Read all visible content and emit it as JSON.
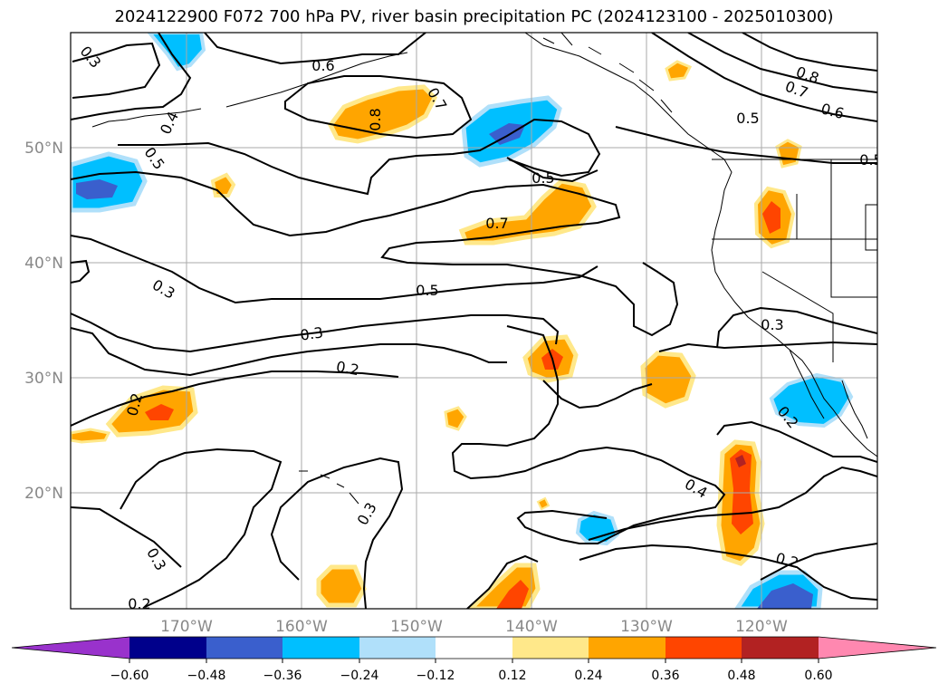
{
  "title": "2024122900 F072 700 hPa PV, river basin precipitation PC (2024123100 - 2025010300)",
  "map": {
    "lat_labels": [
      "50°N",
      "40°N",
      "30°N",
      "20°N"
    ],
    "lon_labels": [
      "170°W",
      "160°W",
      "150°W",
      "140°W",
      "130°W",
      "120°W"
    ],
    "grid": true
  },
  "contour_labels": [
    "0.3",
    "0.6",
    "0.7",
    "0.8",
    "0.8",
    "0.7",
    "0.6",
    "0.5",
    "0.4",
    "0.5",
    "0.5",
    "0.7",
    "0.3",
    "0.5",
    "0.3",
    "0.3",
    "0.2",
    "0.2",
    "0.2",
    "0.4",
    "0.3",
    "0.3",
    "0.2",
    "0.2",
    "0.5"
  ],
  "colorbar": {
    "ticks": [
      "−0.60",
      "−0.48",
      "−0.36",
      "−0.24",
      "−0.12",
      "0.12",
      "0.24",
      "0.36",
      "0.48",
      "0.60"
    ],
    "colors": {
      "under": "#9932cc",
      "bins": [
        "#00008b",
        "#3a5fcd",
        "#00bfff",
        "#b0e0fa",
        "#ffffff",
        "#ffe88a",
        "#ffa500",
        "#ff4500",
        "#b22222"
      ],
      "over": "#ff88b0"
    }
  }
}
